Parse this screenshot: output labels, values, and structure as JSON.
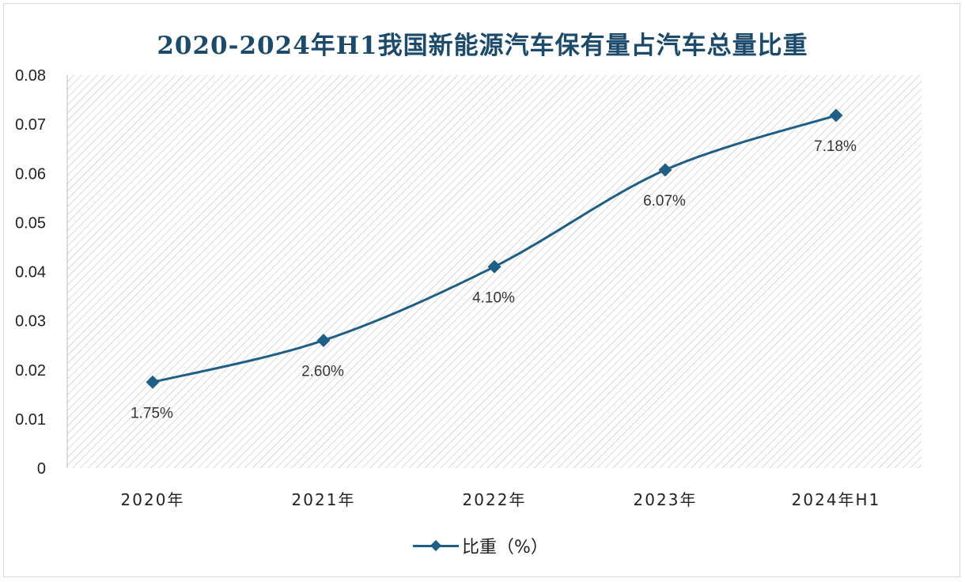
{
  "chart_data": {
    "type": "line",
    "title": "2020-2024年H1我国新能源汽车保有量占汽车总量比重",
    "categories": [
      "2020年",
      "2021年",
      "2022年",
      "2023年",
      "2024年H1"
    ],
    "series": [
      {
        "name": "比重（%）",
        "values": [
          0.0175,
          0.026,
          0.041,
          0.0607,
          0.0718
        ],
        "labels": [
          "1.75%",
          "2.60%",
          "4.10%",
          "6.07%",
          "7.18%"
        ],
        "color": "#1f5f85",
        "marker": "diamond",
        "smooth": true
      }
    ],
    "ylim": [
      0,
      0.08
    ],
    "yticks": [
      "0",
      "0.01",
      "0.02",
      "0.03",
      "0.04",
      "0.05",
      "0.06",
      "0.07",
      "0.08"
    ],
    "xlabel": "",
    "ylabel": "",
    "grid": false,
    "plot_background": "diagonal hatch",
    "legend": "bottom"
  }
}
